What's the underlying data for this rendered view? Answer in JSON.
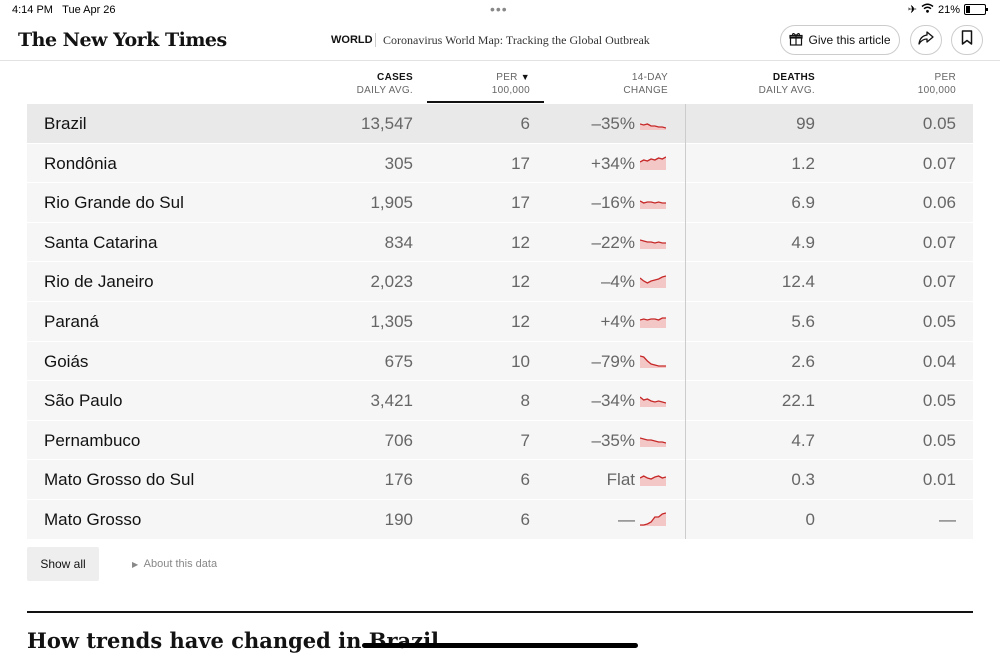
{
  "status": {
    "time": "4:14 PM",
    "date": "Tue Apr 26",
    "battery": "21%"
  },
  "header": {
    "logo": "The New York Times",
    "section": "WORLD",
    "headline": "Coronavirus World Map: Tracking the Global Outbreak",
    "give_label": "Give this article"
  },
  "table": {
    "headers": {
      "cases_1": "CASES",
      "cases_2": "DAILY AVG.",
      "per_1": "PER",
      "per_2": "100,000",
      "chg_1": "14-DAY",
      "chg_2": "CHANGE",
      "deaths_1": "DEATHS",
      "deaths_2": "DAILY AVG.",
      "dper_1": "PER",
      "dper_2": "100,000"
    },
    "rows": [
      {
        "name": "Brazil",
        "cases": "13,547",
        "per": "6",
        "change": "–35%",
        "deaths": "99",
        "dper": "0.05",
        "trend": [
          10,
          11,
          10,
          12,
          12,
          13,
          13,
          14
        ]
      },
      {
        "name": "Rondônia",
        "cases": "305",
        "per": "17",
        "change": "+34%",
        "deaths": "1.2",
        "dper": "0.07",
        "trend": [
          8,
          6,
          7,
          5,
          6,
          4,
          5,
          3
        ]
      },
      {
        "name": "Rio Grande do Sul",
        "cases": "1,905",
        "per": "17",
        "change": "–16%",
        "deaths": "6.9",
        "dper": "0.06",
        "trend": [
          8,
          10,
          9,
          9,
          10,
          9,
          10,
          10
        ]
      },
      {
        "name": "Santa Catarina",
        "cases": "834",
        "per": "12",
        "change": "–22%",
        "deaths": "4.9",
        "dper": "0.07",
        "trend": [
          7,
          8,
          9,
          9,
          10,
          9,
          10,
          10
        ]
      },
      {
        "name": "Rio de Janeiro",
        "cases": "2,023",
        "per": "12",
        "change": "–4%",
        "deaths": "12.4",
        "dper": "0.07",
        "trend": [
          6,
          9,
          11,
          9,
          8,
          7,
          5,
          4
        ]
      },
      {
        "name": "Paraná",
        "cases": "1,305",
        "per": "12",
        "change": "+4%",
        "deaths": "5.6",
        "dper": "0.05",
        "trend": [
          8,
          7,
          8,
          7,
          7,
          8,
          6,
          6
        ]
      },
      {
        "name": "Goiás",
        "cases": "675",
        "per": "10",
        "change": "–79%",
        "deaths": "2.6",
        "dper": "0.04",
        "trend": [
          4,
          5,
          9,
          12,
          13,
          14,
          14,
          14
        ]
      },
      {
        "name": "São Paulo",
        "cases": "3,421",
        "per": "8",
        "change": "–34%",
        "deaths": "22.1",
        "dper": "0.05",
        "trend": [
          6,
          9,
          8,
          10,
          11,
          10,
          11,
          12
        ]
      },
      {
        "name": "Pernambuco",
        "cases": "706",
        "per": "7",
        "change": "–35%",
        "deaths": "4.7",
        "dper": "0.05",
        "trend": [
          7,
          8,
          9,
          9,
          10,
          11,
          11,
          12
        ]
      },
      {
        "name": "Mato Grosso do Sul",
        "cases": "176",
        "per": "6",
        "change": "Flat",
        "deaths": "0.3",
        "dper": "0.01",
        "trend": [
          8,
          6,
          8,
          9,
          7,
          6,
          8,
          7
        ]
      },
      {
        "name": "Mato Grosso",
        "cases": "190",
        "per": "6",
        "change": "—",
        "deaths": "0",
        "dper": "—",
        "trend": [
          15,
          15,
          14,
          12,
          7,
          7,
          4,
          3
        ]
      }
    ]
  },
  "show_all_label": "Show all",
  "about_label": "About this data",
  "section_heading": "How trends have changed in Brazil",
  "colors": {
    "spark_line": "#c62828",
    "spark_fill": "#f4c7c7"
  }
}
